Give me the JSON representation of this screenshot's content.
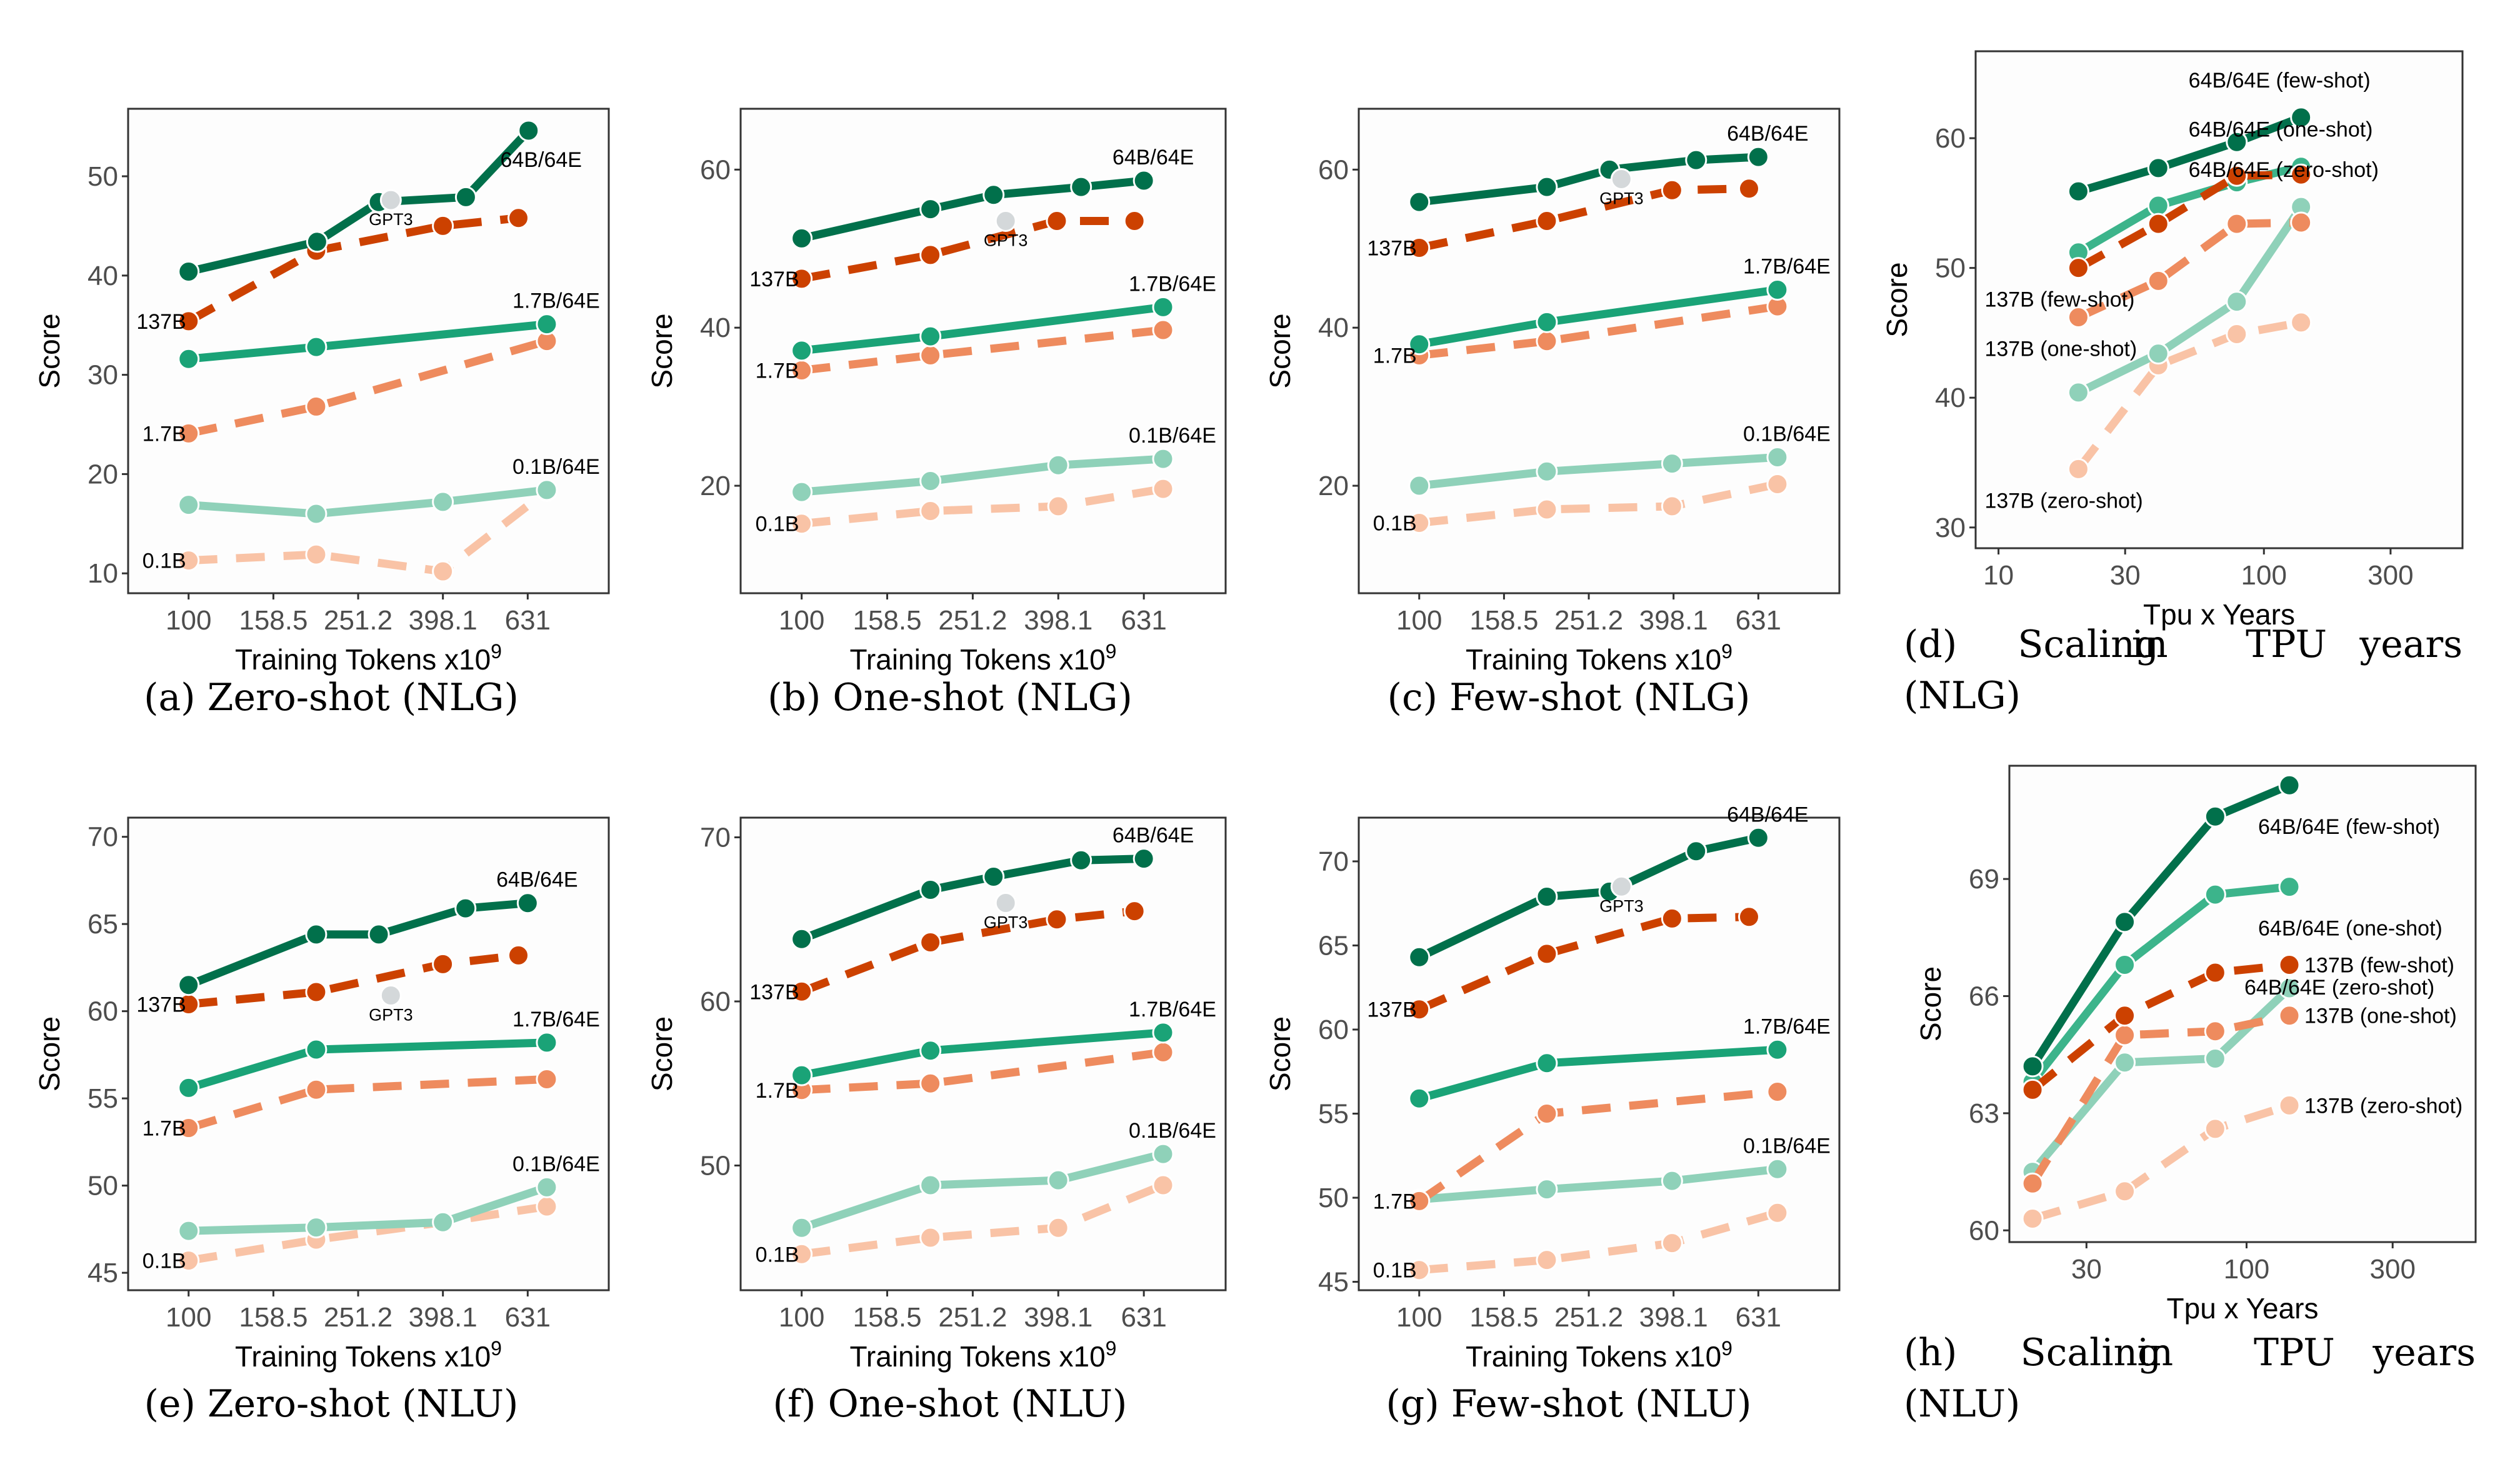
{
  "colors": {
    "moe_64B": "#01704b",
    "moe_1_7B": "#1aa377",
    "moe_0_1B": "#8fd1b9",
    "dense_137B": "#cc4100",
    "dense_1_7B": "#ee8b5e",
    "dense_0_1B": "#f9c3a6",
    "one_shot_64B": "#3cb48b",
    "gpt3": "#d4d8da"
  },
  "chart_data": [
    {
      "type": "line",
      "caption": "(a) Zero-shot (NLG)",
      "xlabel": "Training Tokens x10",
      "xlabel_sup": "9",
      "ylabel": "Score",
      "x_scale": "log",
      "xlim": [
        72,
        980
      ],
      "ylim": [
        8,
        56.8
      ],
      "xticks": [
        100,
        158.5,
        251.2,
        398.1,
        631
      ],
      "yticks": [
        10,
        20,
        30,
        40,
        50
      ],
      "grid": false,
      "series": [
        {
          "name": "0.1B",
          "color_key": "dense_0_1B",
          "dashed": true,
          "x": [
            100,
            200,
            398,
            700
          ],
          "y": [
            11.3,
            11.9,
            10.2,
            18.3
          ]
        },
        {
          "name": "0.1B/64E",
          "color_key": "moe_0_1B",
          "dashed": false,
          "x": [
            100,
            200,
            398,
            700
          ],
          "y": [
            16.9,
            16.0,
            17.2,
            18.4
          ]
        },
        {
          "name": "1.7B",
          "color_key": "dense_1_7B",
          "dashed": true,
          "x": [
            100,
            200,
            700
          ],
          "y": [
            24.1,
            26.8,
            33.4
          ]
        },
        {
          "name": "1.7B/64E",
          "color_key": "moe_1_7B",
          "dashed": false,
          "x": [
            100,
            200,
            700
          ],
          "y": [
            31.6,
            32.8,
            35.1
          ]
        },
        {
          "name": "137B",
          "color_key": "dense_137B",
          "dashed": true,
          "x": [
            100,
            200,
            398,
            600
          ],
          "y": [
            35.4,
            42.5,
            45.0,
            45.8
          ]
        },
        {
          "name": "64B/64E",
          "color_key": "moe_64B",
          "dashed": false,
          "x": [
            100,
            201,
            281,
            451,
            634
          ],
          "y": [
            40.4,
            43.4,
            47.4,
            47.9,
            54.6
          ]
        }
      ],
      "gpt3": {
        "label": "GPT3",
        "x": 300,
        "y": 47.6
      }
    },
    {
      "type": "line",
      "caption": "(b) One-shot (NLG)",
      "xlabel": "Training Tokens x10",
      "xlabel_sup": "9",
      "ylabel": "Score",
      "x_scale": "log",
      "xlim": [
        72,
        980
      ],
      "ylim": [
        6.4,
        67.7
      ],
      "xticks": [
        100,
        158.5,
        251.2,
        398.1,
        631
      ],
      "yticks": [
        20,
        40,
        60
      ],
      "grid": false,
      "series": [
        {
          "name": "0.1B",
          "color_key": "dense_0_1B",
          "dashed": true,
          "x": [
            100,
            200,
            398,
            700
          ],
          "y": [
            15.2,
            16.8,
            17.4,
            19.6
          ]
        },
        {
          "name": "0.1B/64E",
          "color_key": "moe_0_1B",
          "dashed": false,
          "x": [
            100,
            200,
            398,
            700
          ],
          "y": [
            19.2,
            20.6,
            22.6,
            23.4
          ]
        },
        {
          "name": "1.7B",
          "color_key": "dense_1_7B",
          "dashed": true,
          "x": [
            100,
            200,
            700
          ],
          "y": [
            34.6,
            36.5,
            39.7
          ]
        },
        {
          "name": "1.7B/64E",
          "color_key": "moe_1_7B",
          "dashed": false,
          "x": [
            100,
            200,
            700
          ],
          "y": [
            37.1,
            38.9,
            42.6
          ]
        },
        {
          "name": "137B",
          "color_key": "dense_137B",
          "dashed": true,
          "x": [
            100,
            200,
            395,
            600
          ],
          "y": [
            46.2,
            49.2,
            53.5,
            53.5
          ]
        },
        {
          "name": "64B/64E",
          "color_key": "moe_64B",
          "dashed": false,
          "x": [
            100,
            200,
            281,
            450,
            631
          ],
          "y": [
            51.3,
            55.0,
            56.8,
            57.8,
            58.6
          ]
        }
      ],
      "gpt3": {
        "label": "GPT3",
        "x": 300,
        "y": 53.5
      }
    },
    {
      "type": "line",
      "caption": "(c) Few-shot (NLG)",
      "xlabel": "Training Tokens x10",
      "xlabel_sup": "9",
      "ylabel": "Score",
      "x_scale": "log",
      "xlim": [
        72,
        980
      ],
      "ylim": [
        6.4,
        67.7
      ],
      "xticks": [
        100,
        158.5,
        251.2,
        398.1,
        631
      ],
      "yticks": [
        20,
        40,
        60
      ],
      "grid": false,
      "series": [
        {
          "name": "0.1B",
          "color_key": "dense_0_1B",
          "dashed": true,
          "x": [
            100,
            200,
            395,
            700
          ],
          "y": [
            15.3,
            17.0,
            17.4,
            20.2
          ]
        },
        {
          "name": "0.1B/64E",
          "color_key": "moe_0_1B",
          "dashed": false,
          "x": [
            100,
            200,
            395,
            700
          ],
          "y": [
            20.0,
            21.8,
            22.8,
            23.6
          ]
        },
        {
          "name": "1.7B",
          "color_key": "dense_1_7B",
          "dashed": true,
          "x": [
            100,
            200,
            700
          ],
          "y": [
            36.5,
            38.3,
            42.7
          ]
        },
        {
          "name": "1.7B/64E",
          "color_key": "moe_1_7B",
          "dashed": false,
          "x": [
            100,
            200,
            700
          ],
          "y": [
            37.9,
            40.7,
            44.8
          ]
        },
        {
          "name": "137B",
          "color_key": "dense_137B",
          "dashed": true,
          "x": [
            100,
            200,
            395,
            600
          ],
          "y": [
            50.1,
            53.5,
            57.4,
            57.6
          ]
        },
        {
          "name": "64B/64E",
          "color_key": "moe_64B",
          "dashed": false,
          "x": [
            100,
            200,
            281,
            450,
            631
          ],
          "y": [
            55.9,
            57.8,
            60.0,
            61.2,
            61.6
          ]
        }
      ],
      "gpt3": {
        "label": "GPT3",
        "x": 300,
        "y": 58.8
      }
    },
    {
      "type": "line",
      "caption": "(d) Scaling in TPU years (NLG)",
      "xlabel": "Tpu x Years",
      "ylabel": "Score",
      "x_scale": "log",
      "xlim": [
        8.2,
        560
      ],
      "ylim": [
        28.4,
        66.7
      ],
      "xticks": [
        10,
        30,
        100,
        300
      ],
      "yticks": [
        30,
        40,
        50,
        60
      ],
      "grid": false,
      "series": [
        {
          "name": "137B (zero-shot)",
          "color_key": "dense_0_1B",
          "dashed": true,
          "x": [
            20,
            40,
            79,
            138
          ],
          "y": [
            34.5,
            42.5,
            44.9,
            45.8
          ]
        },
        {
          "name": "64B/64E (zero-shot)",
          "color_key": "moe_0_1B",
          "dashed": false,
          "x": [
            20,
            40,
            79,
            138
          ],
          "y": [
            40.4,
            43.4,
            47.4,
            54.7
          ]
        },
        {
          "name": "137B (one-shot)",
          "color_key": "dense_1_7B",
          "dashed": true,
          "x": [
            20,
            40,
            79,
            138
          ],
          "y": [
            46.2,
            49.0,
            53.4,
            53.5
          ]
        },
        {
          "name": "64B/64E (one-shot)",
          "color_key": "one_shot_64B",
          "dashed": false,
          "x": [
            20,
            40,
            79,
            138
          ],
          "y": [
            51.2,
            54.8,
            56.6,
            57.8
          ]
        },
        {
          "name": "137B (few-shot)",
          "color_key": "dense_137B",
          "dashed": true,
          "x": [
            20,
            40,
            79,
            138
          ],
          "y": [
            50.0,
            53.4,
            57.1,
            57.2
          ]
        },
        {
          "name": "64B/64E (few-shot)",
          "color_key": "moe_64B",
          "dashed": false,
          "x": [
            20,
            40,
            79,
            138
          ],
          "y": [
            55.9,
            57.7,
            59.7,
            61.6
          ]
        }
      ]
    },
    {
      "type": "line",
      "caption": "(e) Zero-shot (NLU)",
      "xlabel": "Training Tokens x10",
      "xlabel_sup": "9",
      "ylabel": "Score",
      "x_scale": "log",
      "xlim": [
        72,
        980
      ],
      "ylim": [
        44.0,
        71.1
      ],
      "xticks": [
        100,
        158.5,
        251.2,
        398.1,
        631
      ],
      "yticks": [
        45,
        50,
        55,
        60,
        65,
        70
      ],
      "grid": false,
      "series": [
        {
          "name": "0.1B",
          "color_key": "dense_0_1B",
          "dashed": true,
          "x": [
            100,
            200,
            398,
            700
          ],
          "y": [
            45.7,
            46.9,
            47.9,
            48.8
          ]
        },
        {
          "name": "0.1B/64E",
          "color_key": "moe_0_1B",
          "dashed": false,
          "x": [
            100,
            200,
            398,
            700
          ],
          "y": [
            47.4,
            47.6,
            47.9,
            49.9
          ]
        },
        {
          "name": "1.7B",
          "color_key": "dense_1_7B",
          "dashed": true,
          "x": [
            100,
            200,
            700
          ],
          "y": [
            53.3,
            55.5,
            56.1
          ]
        },
        {
          "name": "1.7B/64E",
          "color_key": "moe_1_7B",
          "dashed": false,
          "x": [
            100,
            200,
            700
          ],
          "y": [
            55.6,
            57.8,
            58.2
          ]
        },
        {
          "name": "137B",
          "color_key": "dense_137B",
          "dashed": true,
          "x": [
            100,
            200,
            398,
            600
          ],
          "y": [
            60.4,
            61.1,
            62.7,
            63.2
          ]
        },
        {
          "name": "64B/64E",
          "color_key": "moe_64B",
          "dashed": false,
          "x": [
            100,
            200,
            281,
            450,
            631
          ],
          "y": [
            61.5,
            64.4,
            64.4,
            65.9,
            66.2
          ]
        }
      ],
      "gpt3": {
        "label": "GPT3",
        "x": 300,
        "y": 60.9
      }
    },
    {
      "type": "line",
      "caption": "(f) One-shot (NLU)",
      "xlabel": "Training Tokens x10",
      "xlabel_sup": "9",
      "ylabel": "Score",
      "x_scale": "log",
      "xlim": [
        72,
        980
      ],
      "ylim": [
        42.4,
        71.2
      ],
      "xticks": [
        100,
        158.5,
        251.2,
        398.1,
        631
      ],
      "yticks": [
        50,
        60,
        70
      ],
      "grid": false,
      "series": [
        {
          "name": "0.1B",
          "color_key": "dense_0_1B",
          "dashed": true,
          "x": [
            100,
            200,
            398,
            700
          ],
          "y": [
            44.6,
            45.6,
            46.2,
            48.8
          ]
        },
        {
          "name": "0.1B/64E",
          "color_key": "moe_0_1B",
          "dashed": false,
          "x": [
            100,
            200,
            398,
            700
          ],
          "y": [
            46.2,
            48.8,
            49.1,
            50.7
          ]
        },
        {
          "name": "1.7B",
          "color_key": "dense_1_7B",
          "dashed": true,
          "x": [
            100,
            200,
            700
          ],
          "y": [
            54.6,
            55.0,
            56.9
          ]
        },
        {
          "name": "1.7B/64E",
          "color_key": "moe_1_7B",
          "dashed": false,
          "x": [
            100,
            200,
            700
          ],
          "y": [
            55.5,
            57.0,
            58.1
          ]
        },
        {
          "name": "137B",
          "color_key": "dense_137B",
          "dashed": true,
          "x": [
            100,
            200,
            395,
            600
          ],
          "y": [
            60.6,
            63.6,
            65.0,
            65.5
          ]
        },
        {
          "name": "64B/64E",
          "color_key": "moe_64B",
          "dashed": false,
          "x": [
            100,
            200,
            281,
            450,
            631
          ],
          "y": [
            63.8,
            66.8,
            67.6,
            68.6,
            68.7
          ]
        }
      ],
      "gpt3": {
        "label": "GPT3",
        "x": 300,
        "y": 66.0
      }
    },
    {
      "type": "line",
      "caption": "(g) Few-shot (NLU)",
      "xlabel": "Training Tokens x10",
      "xlabel_sup": "9",
      "ylabel": "Score",
      "x_scale": "log",
      "xlim": [
        72,
        980
      ],
      "ylim": [
        44.5,
        72.6
      ],
      "xticks": [
        100,
        158.5,
        251.2,
        398.1,
        631
      ],
      "yticks": [
        45,
        50,
        55,
        60,
        65,
        70
      ],
      "grid": false,
      "series": [
        {
          "name": "0.1B",
          "color_key": "dense_0_1B",
          "dashed": true,
          "x": [
            100,
            200,
            395,
            700
          ],
          "y": [
            45.7,
            46.3,
            47.3,
            49.1
          ]
        },
        {
          "name": "0.1B/64E",
          "color_key": "moe_0_1B",
          "dashed": false,
          "x": [
            100,
            200,
            395,
            700
          ],
          "y": [
            49.9,
            50.5,
            51.0,
            51.7
          ]
        },
        {
          "name": "1.7B",
          "color_key": "dense_1_7B",
          "dashed": true,
          "x": [
            100,
            200,
            700
          ],
          "y": [
            49.8,
            55.0,
            56.3
          ]
        },
        {
          "name": "1.7B/64E",
          "color_key": "moe_1_7B",
          "dashed": false,
          "x": [
            100,
            200,
            700
          ],
          "y": [
            55.9,
            58.0,
            58.8
          ]
        },
        {
          "name": "137B",
          "color_key": "dense_137B",
          "dashed": true,
          "x": [
            100,
            200,
            395,
            600
          ],
          "y": [
            61.2,
            64.5,
            66.6,
            66.7
          ]
        },
        {
          "name": "64B/64E",
          "color_key": "moe_64B",
          "dashed": false,
          "x": [
            100,
            200,
            281,
            450,
            631
          ],
          "y": [
            64.3,
            67.9,
            68.2,
            70.6,
            71.4
          ]
        }
      ],
      "gpt3": {
        "label": "GPT3",
        "x": 300,
        "y": 68.5
      }
    },
    {
      "type": "line",
      "caption": "(h) Scaling in TPU years (NLU)",
      "xlabel": "Tpu x Years",
      "ylabel": "Score",
      "x_scale": "log",
      "xlim": [
        16.8,
        560
      ],
      "ylim": [
        59.7,
        71.9
      ],
      "xticks": [
        30,
        100,
        300
      ],
      "yticks": [
        60,
        63,
        66,
        69
      ],
      "grid": false,
      "series": [
        {
          "name": "137B (zero-shot)",
          "color_key": "dense_0_1B",
          "dashed": true,
          "x": [
            20,
            40,
            79,
            138
          ],
          "y": [
            60.3,
            61.0,
            62.6,
            63.2
          ]
        },
        {
          "name": "64B/64E (zero-shot)",
          "color_key": "moe_0_1B",
          "dashed": false,
          "x": [
            20,
            40,
            79,
            138
          ],
          "y": [
            61.5,
            64.3,
            64.4,
            66.2
          ]
        },
        {
          "name": "137B (one-shot)",
          "color_key": "dense_1_7B",
          "dashed": true,
          "x": [
            20,
            40,
            79,
            138
          ],
          "y": [
            61.2,
            65.0,
            65.1,
            65.5
          ]
        },
        {
          "name": "64B/64E (one-shot)",
          "color_key": "one_shot_64B",
          "dashed": false,
          "x": [
            20,
            40,
            79,
            138
          ],
          "y": [
            63.8,
            66.8,
            68.6,
            68.8
          ]
        },
        {
          "name": "137B (few-shot)",
          "color_key": "dense_137B",
          "dashed": true,
          "x": [
            20,
            40,
            79,
            138
          ],
          "y": [
            63.6,
            65.5,
            66.6,
            66.8
          ]
        },
        {
          "name": "64B/64E (few-shot)",
          "color_key": "moe_64B",
          "dashed": false,
          "x": [
            20,
            40,
            79,
            138
          ],
          "y": [
            64.2,
            67.9,
            70.6,
            71.4
          ]
        }
      ]
    }
  ]
}
